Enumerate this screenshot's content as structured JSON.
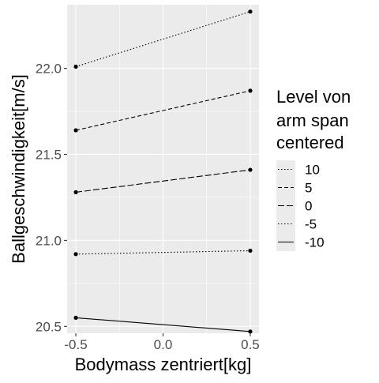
{
  "chart_data": {
    "type": "line",
    "title": "",
    "xlabel": "Bodymass zentriert[kg]",
    "ylabel": "Ballgeschwindigkeit[m/s]",
    "xlim": [
      -0.55,
      0.55
    ],
    "ylim": [
      20.46,
      22.37
    ],
    "x_ticks": [
      -0.5,
      0.0,
      0.5
    ],
    "x_tick_labels": [
      "-0.5",
      "0.0",
      "0.5"
    ],
    "y_ticks": [
      20.5,
      21.0,
      21.5,
      22.0
    ],
    "y_tick_labels": [
      "20.5",
      "21.0",
      "21.5",
      "22.0"
    ],
    "x": [
      -0.5,
      0.5
    ],
    "grid": true,
    "legend": {
      "title_lines": [
        "Level von",
        "arm span",
        "centered"
      ],
      "position": "right"
    },
    "series": [
      {
        "name": "10",
        "values": [
          22.01,
          22.33
        ],
        "linetype": "dotted"
      },
      {
        "name": "5",
        "values": [
          21.64,
          21.87
        ],
        "linetype": "dashed"
      },
      {
        "name": "0",
        "values": [
          21.28,
          21.41
        ],
        "linetype": "longdash"
      },
      {
        "name": "-5",
        "values": [
          20.92,
          20.94
        ],
        "linetype": "dotted"
      },
      {
        "name": "-10",
        "values": [
          20.55,
          20.47
        ],
        "linetype": "solid"
      }
    ],
    "colors": {
      "line": "#000000",
      "panel": "#ebebeb",
      "grid": "#ffffff"
    }
  }
}
